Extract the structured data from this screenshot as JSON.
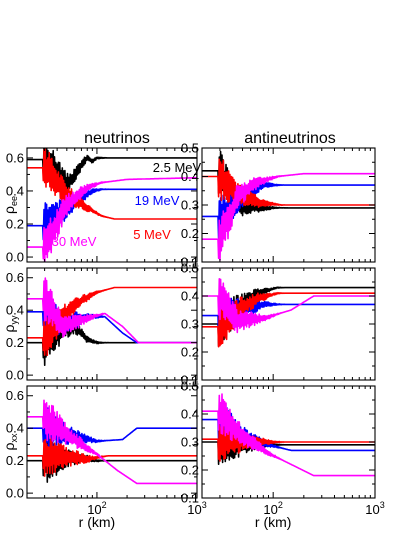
{
  "col_titles": [
    "neutrinos",
    "antineutrinos"
  ],
  "row_labels": [
    {
      "main": "ρ",
      "sub": "ee"
    },
    {
      "main": "ρ",
      "sub": "yy"
    },
    {
      "main": "ρ",
      "sub": "xx"
    }
  ],
  "xlabel": "r (km)",
  "x_ticks": [
    {
      "base": "10",
      "exp": "2",
      "value": 100
    },
    {
      "base": "10",
      "exp": "3",
      "value": 1000
    }
  ],
  "colors": {
    "black": "#000000",
    "blue": "#0000ff",
    "red": "#ff0000",
    "magenta": "#ff00ff"
  },
  "chart_data": [
    {
      "type": "line",
      "panel": "neutrinos-ee",
      "xscale": "log",
      "xlim": [
        20,
        1000
      ],
      "ylim": [
        -0.03,
        0.66
      ],
      "yticks": [
        "0.0",
        "0.2",
        "0.4",
        "0.6"
      ],
      "ytick_values": [
        0.0,
        0.2,
        0.4,
        0.6
      ],
      "series": [
        {
          "name": "2.5 MeV",
          "color": "black",
          "x": [
            20,
            30,
            42,
            50,
            60,
            70,
            80,
            90,
            100,
            1000
          ],
          "y": [
            0.59,
            0.59,
            0.5,
            0.44,
            0.49,
            0.56,
            0.6,
            0.58,
            0.6,
            0.6
          ]
        },
        {
          "name": "19 MeV",
          "color": "blue",
          "x": [
            20,
            30,
            45,
            60,
            90,
            110,
            1000
          ],
          "y": [
            0.19,
            0.19,
            0.27,
            0.33,
            0.4,
            0.41,
            0.41
          ]
        },
        {
          "name": "5 MeV",
          "color": "red",
          "x": [
            20,
            30,
            50,
            80,
            110,
            150,
            1000
          ],
          "y": [
            0.54,
            0.54,
            0.38,
            0.3,
            0.25,
            0.23,
            0.23
          ]
        },
        {
          "name": "30 MeV",
          "color": "magenta",
          "x": [
            20,
            30,
            50,
            80,
            110,
            200,
            1000
          ],
          "y": [
            0.06,
            0.06,
            0.32,
            0.42,
            0.45,
            0.47,
            0.48
          ]
        }
      ],
      "annotations": [
        {
          "text": "2.5 MeV",
          "color": "black"
        },
        {
          "text": "19 MeV",
          "color": "blue"
        },
        {
          "text": "5 MeV",
          "color": "red"
        },
        {
          "text": "30 MeV",
          "color": "magenta"
        }
      ]
    },
    {
      "type": "line",
      "panel": "antineutrinos-ee",
      "xscale": "log",
      "xlim": [
        20,
        1000
      ],
      "ylim": [
        0.1,
        0.5
      ],
      "yticks": [
        "0.1",
        "0.2",
        "0.3",
        "0.4",
        "0.5"
      ],
      "ytick_values": [
        0.1,
        0.2,
        0.3,
        0.4,
        0.5
      ],
      "series": [
        {
          "color": "black",
          "x": [
            20,
            30,
            40,
            50,
            70,
            1000
          ],
          "y": [
            0.42,
            0.42,
            0.33,
            0.3,
            0.29,
            0.29
          ]
        },
        {
          "color": "blue",
          "x": [
            20,
            30,
            45,
            60,
            80,
            120,
            1000
          ],
          "y": [
            0.26,
            0.26,
            0.31,
            0.35,
            0.37,
            0.37,
            0.37
          ]
        },
        {
          "color": "red",
          "x": [
            20,
            30,
            45,
            70,
            120,
            1000
          ],
          "y": [
            0.4,
            0.4,
            0.34,
            0.31,
            0.3,
            0.3
          ]
        },
        {
          "color": "magenta",
          "x": [
            20,
            30,
            45,
            70,
            110,
            200,
            1000
          ],
          "y": [
            0.18,
            0.18,
            0.33,
            0.38,
            0.4,
            0.41,
            0.41
          ]
        }
      ]
    },
    {
      "type": "line",
      "panel": "neutrinos-yy",
      "xscale": "log",
      "xlim": [
        20,
        1000
      ],
      "ylim": [
        -0.03,
        0.66
      ],
      "yticks": [
        "0.0",
        "0.2",
        "0.4",
        "0.6"
      ],
      "ytick_values": [
        0.0,
        0.2,
        0.4,
        0.6
      ],
      "series": [
        {
          "color": "black",
          "x": [
            20,
            30,
            45,
            60,
            80,
            100,
            1000
          ],
          "y": [
            0.2,
            0.2,
            0.28,
            0.3,
            0.22,
            0.2,
            0.2
          ]
        },
        {
          "color": "blue",
          "x": [
            20,
            30,
            45,
            80,
            120,
            180,
            250,
            1000
          ],
          "y": [
            0.39,
            0.39,
            0.32,
            0.36,
            0.36,
            0.26,
            0.2,
            0.2
          ]
        },
        {
          "color": "red",
          "x": [
            20,
            30,
            45,
            70,
            100,
            150,
            1000
          ],
          "y": [
            0.23,
            0.23,
            0.36,
            0.46,
            0.51,
            0.54,
            0.54
          ]
        },
        {
          "color": "magenta",
          "x": [
            20,
            30,
            45,
            80,
            120,
            180,
            260,
            1000
          ],
          "y": [
            0.47,
            0.47,
            0.3,
            0.35,
            0.38,
            0.3,
            0.2,
            0.2
          ]
        }
      ]
    },
    {
      "type": "line",
      "panel": "antineutrinos-yy",
      "xscale": "log",
      "xlim": [
        20,
        1000
      ],
      "ylim": [
        0.1,
        0.5
      ],
      "yticks": [
        "0.1",
        "0.2",
        "0.3",
        "0.4",
        "0.5"
      ],
      "ytick_values": [
        0.1,
        0.2,
        0.3,
        0.4,
        0.5
      ],
      "series": [
        {
          "color": "black",
          "x": [
            20,
            30,
            45,
            70,
            110,
            1000
          ],
          "y": [
            0.3,
            0.3,
            0.36,
            0.41,
            0.43,
            0.43
          ]
        },
        {
          "color": "blue",
          "x": [
            20,
            30,
            50,
            80,
            120,
            1000
          ],
          "y": [
            0.33,
            0.33,
            0.35,
            0.37,
            0.37,
            0.37
          ]
        },
        {
          "color": "red",
          "x": [
            20,
            30,
            45,
            70,
            110,
            1000
          ],
          "y": [
            0.29,
            0.29,
            0.35,
            0.39,
            0.41,
            0.41
          ]
        },
        {
          "color": "magenta",
          "x": [
            20,
            30,
            45,
            80,
            150,
            250,
            1000
          ],
          "y": [
            0.4,
            0.4,
            0.31,
            0.32,
            0.35,
            0.4,
            0.4
          ]
        }
      ]
    },
    {
      "type": "line",
      "panel": "neutrinos-xx",
      "xscale": "log",
      "xlim": [
        20,
        1000
      ],
      "ylim": [
        -0.03,
        0.66
      ],
      "yticks": [
        "0.0",
        "0.2",
        "0.4",
        "0.6"
      ],
      "ytick_values": [
        0.0,
        0.2,
        0.4,
        0.6
      ],
      "series": [
        {
          "color": "black",
          "x": [
            20,
            30,
            45,
            70,
            100,
            1000
          ],
          "y": [
            0.2,
            0.2,
            0.21,
            0.22,
            0.2,
            0.2
          ]
        },
        {
          "color": "blue",
          "x": [
            20,
            30,
            50,
            100,
            180,
            250,
            1000
          ],
          "y": [
            0.4,
            0.4,
            0.36,
            0.32,
            0.33,
            0.4,
            0.4
          ]
        },
        {
          "color": "red",
          "x": [
            20,
            30,
            50,
            80,
            130,
            1000
          ],
          "y": [
            0.23,
            0.23,
            0.22,
            0.21,
            0.23,
            0.23
          ]
        },
        {
          "color": "magenta",
          "x": [
            20,
            30,
            50,
            100,
            160,
            250,
            1000
          ],
          "y": [
            0.47,
            0.47,
            0.36,
            0.24,
            0.14,
            0.06,
            0.06
          ]
        }
      ]
    },
    {
      "type": "line",
      "panel": "antineutrinos-xx",
      "xscale": "log",
      "xlim": [
        20,
        1000
      ],
      "ylim": [
        0.1,
        0.5
      ],
      "yticks": [
        "0.1",
        "0.2",
        "0.3",
        "0.4",
        "0.5"
      ],
      "ytick_values": [
        0.1,
        0.2,
        0.3,
        0.4,
        0.5
      ],
      "series": [
        {
          "color": "black",
          "x": [
            20,
            30,
            45,
            70,
            1000
          ],
          "y": [
            0.3,
            0.3,
            0.29,
            0.29,
            0.29
          ]
        },
        {
          "color": "blue",
          "x": [
            20,
            30,
            50,
            90,
            150,
            1000
          ],
          "y": [
            0.38,
            0.38,
            0.32,
            0.29,
            0.27,
            0.27
          ]
        },
        {
          "color": "red",
          "x": [
            20,
            30,
            60,
            1000
          ],
          "y": [
            0.31,
            0.31,
            0.3,
            0.3
          ]
        },
        {
          "color": "magenta",
          "x": [
            20,
            30,
            50,
            90,
            150,
            250,
            1000
          ],
          "y": [
            0.41,
            0.41,
            0.32,
            0.26,
            0.22,
            0.18,
            0.18
          ]
        }
      ]
    }
  ]
}
